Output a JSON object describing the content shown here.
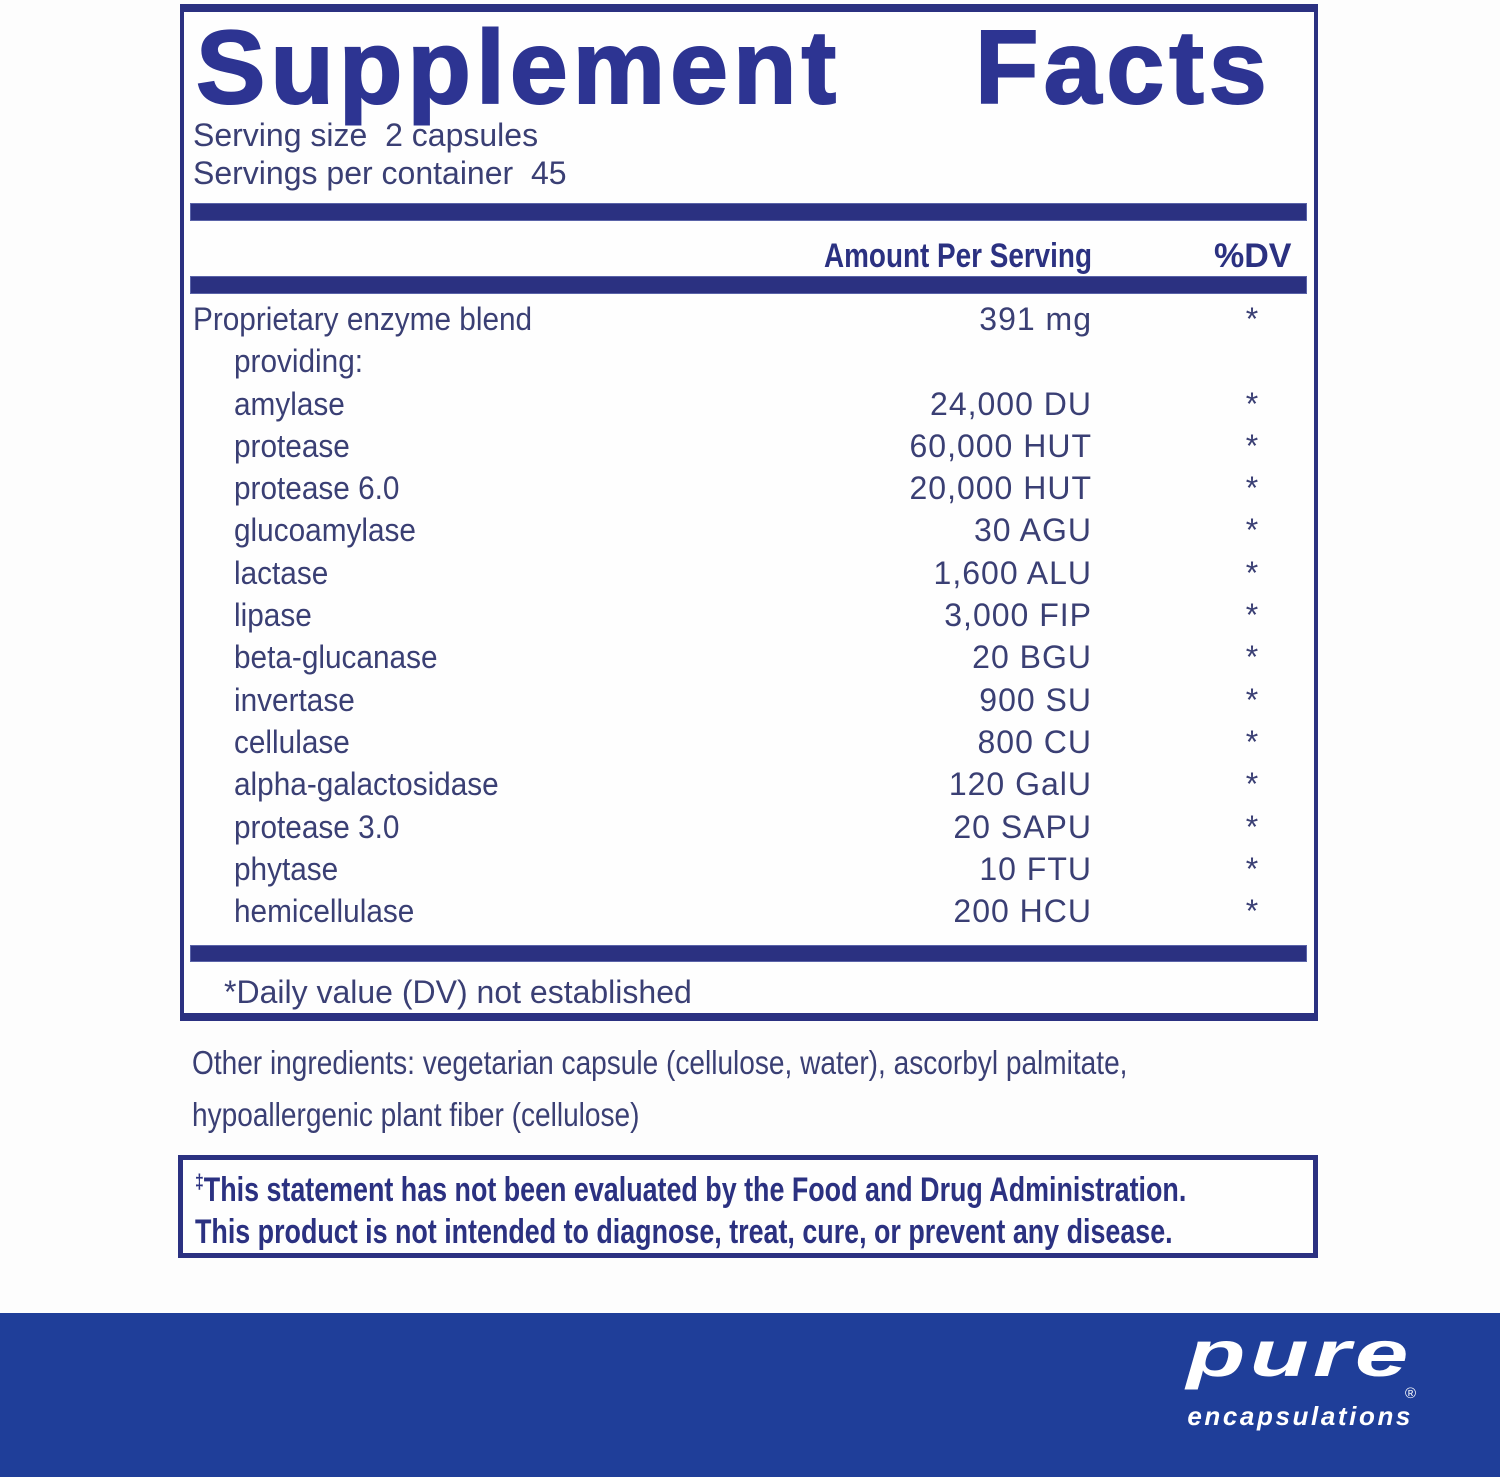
{
  "colors": {
    "ink": "#2b3181",
    "title_ink": "#2d3492",
    "body_ink": "#3a3f74",
    "band_blue": "#1f3e99",
    "white": "#ffffff"
  },
  "panel": {
    "title": "Supplement Facts",
    "serving_size_line": "Serving size  2 capsules",
    "servings_per_container_line": "Servings per container  45",
    "header": {
      "amount": "Amount Per Serving",
      "dv": "%DV"
    },
    "rows": [
      {
        "label": "Proprietary enzyme blend",
        "amount": "391 mg",
        "dv": "*",
        "indent": false
      },
      {
        "label": "providing:",
        "amount": "",
        "dv": "",
        "indent": true
      },
      {
        "label": "amylase",
        "amount": "24,000 DU",
        "dv": "*",
        "indent": true
      },
      {
        "label": "protease",
        "amount": "60,000 HUT",
        "dv": "*",
        "indent": true
      },
      {
        "label": "protease 6.0",
        "amount": "20,000 HUT",
        "dv": "*",
        "indent": true
      },
      {
        "label": "glucoamylase",
        "amount": "30 AGU",
        "dv": "*",
        "indent": true
      },
      {
        "label": "lactase",
        "amount": "1,600 ALU",
        "dv": "*",
        "indent": true
      },
      {
        "label": "lipase",
        "amount": "3,000 FIP",
        "dv": "*",
        "indent": true
      },
      {
        "label": "beta-glucanase",
        "amount": "20 BGU",
        "dv": "*",
        "indent": true
      },
      {
        "label": "invertase",
        "amount": "900 SU",
        "dv": "*",
        "indent": true
      },
      {
        "label": "cellulase",
        "amount": "800 CU",
        "dv": "*",
        "indent": true
      },
      {
        "label": "alpha-galactosidase",
        "amount": "120 GalU",
        "dv": "*",
        "indent": true
      },
      {
        "label": "protease 3.0",
        "amount": "20 SAPU",
        "dv": "*",
        "indent": true
      },
      {
        "label": "phytase",
        "amount": "10 FTU",
        "dv": "*",
        "indent": true
      },
      {
        "label": "hemicellulase",
        "amount": "200 HCU",
        "dv": "*",
        "indent": true
      }
    ],
    "footnote": "*Daily value (DV) not established"
  },
  "other_ingredients": {
    "line1": "Other ingredients: vegetarian capsule (cellulose, water), ascorbyl palmitate,",
    "line2": "hypoallergenic plant fiber (cellulose)"
  },
  "disclaimer": {
    "dagger": "‡",
    "line1": "This statement has not been evaluated by the Food and Drug Administration.",
    "line2": "This product is not intended to diagnose, treat, cure, or prevent any disease."
  },
  "brand": {
    "name": "pure",
    "subname": "encapsulations",
    "registered": "®"
  }
}
